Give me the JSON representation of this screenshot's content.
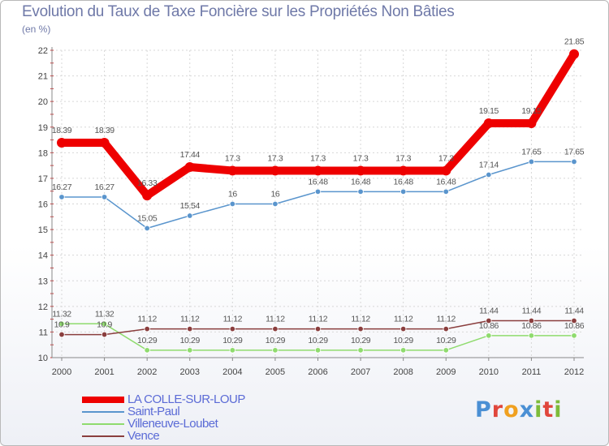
{
  "page": {
    "title": "Evolution du Taux de Taxe Foncière sur les Propriétés Non Bâties",
    "unit": "(en %)"
  },
  "chart_data": {
    "type": "line",
    "title": "Evolution du Taux de Taxe Foncière sur les Propriétés Non Bâties",
    "ylabel": "(en %)",
    "xlabel": "",
    "ylim": [
      10,
      22
    ],
    "yticks": [
      "10",
      "11",
      "12",
      "13",
      "14",
      "15",
      "16",
      "17",
      "18",
      "19",
      "20",
      "21",
      "22"
    ],
    "grid": true,
    "legend_position": "bottom-left",
    "categories": [
      "2000",
      "2001",
      "2002",
      "2003",
      "2004",
      "2005",
      "2006",
      "2007",
      "2008",
      "2009",
      "2010",
      "2011",
      "2012"
    ],
    "series": [
      {
        "name": "Saint-Paul",
        "color": "#5a95cd",
        "values": [
          16.27,
          16.27,
          15.05,
          15.54,
          16,
          16,
          16.48,
          16.48,
          16.48,
          16.48,
          17.14,
          17.65,
          17.65
        ],
        "labels": [
          "16.27",
          "16.27",
          "15.05",
          "15.54",
          "16",
          "16",
          "16.48",
          "16.48",
          "16.48",
          "16.48",
          "17.14",
          "17.65",
          "17.65"
        ]
      },
      {
        "name": "Villeneuve-Loubet",
        "color": "#8fdb6e",
        "values": [
          11.32,
          11.32,
          10.29,
          10.29,
          10.29,
          10.29,
          10.29,
          10.29,
          10.29,
          10.29,
          10.86,
          10.86,
          10.86
        ],
        "labels": [
          "11.32",
          "11.32",
          "10.29",
          "10.29",
          "10.29",
          "10.29",
          "10.29",
          "10.29",
          "10.29",
          "10.29",
          "10.86",
          "10.86",
          "10.86"
        ]
      },
      {
        "name": "Vence",
        "color": "#8a3e3e",
        "values": [
          10.9,
          10.9,
          11.12,
          11.12,
          11.12,
          11.12,
          11.12,
          11.12,
          11.12,
          11.12,
          11.44,
          11.44,
          11.44
        ],
        "labels": [
          "10.9",
          "10.9",
          "11.12",
          "11.12",
          "11.12",
          "11.12",
          "11.12",
          "11.12",
          "11.12",
          "11.12",
          "11.44",
          "11.44",
          "11.44"
        ]
      },
      {
        "name": "LA COLLE-SUR-LOUP",
        "color": "#ee0000",
        "values": [
          18.39,
          18.39,
          16.33,
          17.44,
          17.3,
          17.3,
          17.3,
          17.3,
          17.3,
          17.3,
          19.15,
          19.15,
          21.85
        ],
        "labels": [
          "18.39",
          "18.39",
          "16.33",
          "17.44",
          "17.3",
          "17.3",
          "17.3",
          "17.3",
          "17.3",
          "17.3",
          "19.15",
          "19.15",
          "21.85"
        ]
      }
    ]
  },
  "legend": {
    "items": [
      {
        "label": "LA COLLE-SUR-LOUP",
        "color": "#ee0000",
        "thickness": "thick"
      },
      {
        "label": "Saint-Paul",
        "color": "#5a95cd",
        "thickness": "thin"
      },
      {
        "label": "Villeneuve-Loubet",
        "color": "#8fdb6e",
        "thickness": "thin"
      },
      {
        "label": "Vence",
        "color": "#8a3e3e",
        "thickness": "thin"
      }
    ]
  },
  "brand": {
    "letters": [
      "P",
      "r",
      "o",
      "x",
      "i",
      "t",
      "i"
    ],
    "colors": [
      "#4a8fd4",
      "#e0463c",
      "#f0a020",
      "#4a8fd4",
      "#7dbb3a",
      "#e0463c",
      "#7dbb3a"
    ]
  }
}
